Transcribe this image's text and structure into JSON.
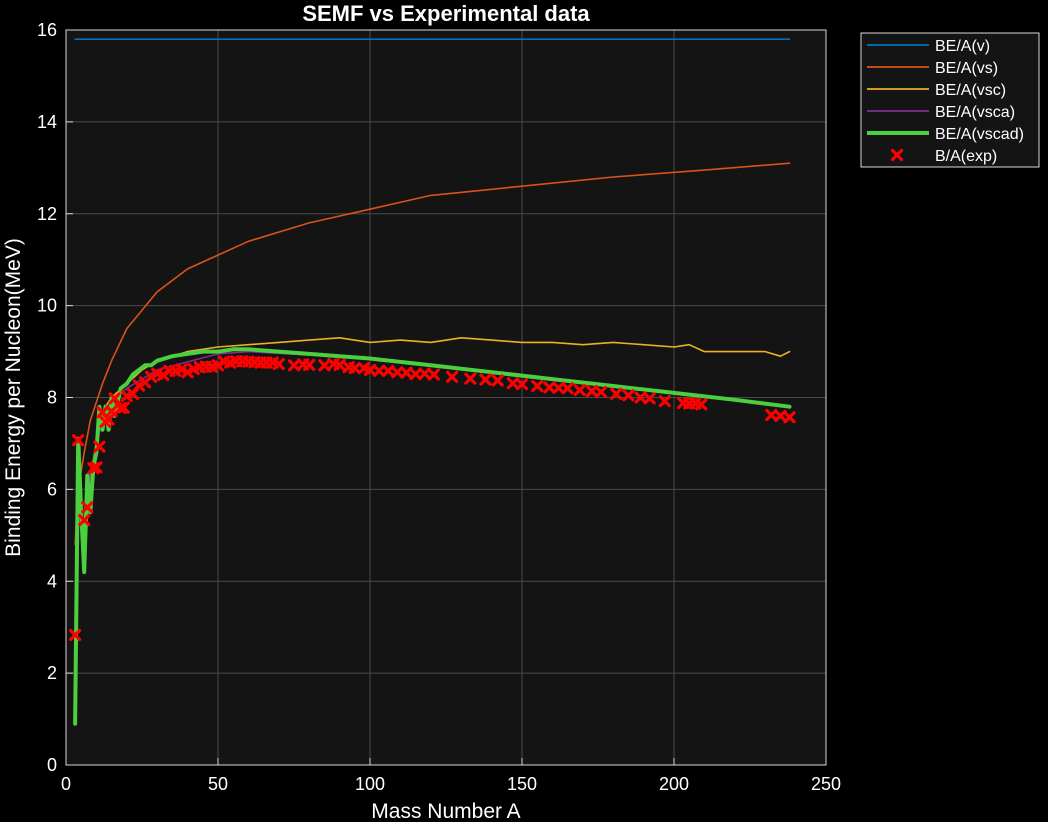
{
  "chart_data": {
    "type": "line",
    "title": "SEMF vs Experimental data",
    "xlabel": "Mass Number A",
    "ylabel": "Binding Energy per Nucleon(MeV)",
    "xlim": [
      0,
      250
    ],
    "ylim": [
      0,
      16
    ],
    "xticks": [
      0,
      50,
      100,
      150,
      200,
      250
    ],
    "yticks": [
      0,
      2,
      4,
      6,
      8,
      10,
      12,
      14,
      16
    ],
    "grid": true,
    "legend_position": "outside top-right",
    "background": "#141414",
    "series": [
      {
        "name": "BE/A(v)",
        "color": "#0072BD",
        "style": "line",
        "x": [
          3,
          238
        ],
        "y": [
          15.8,
          15.8
        ]
      },
      {
        "name": "BE/A(vs)",
        "color": "#D95319",
        "style": "line",
        "x": [
          3,
          4,
          6,
          8,
          10,
          12,
          15,
          20,
          25,
          30,
          40,
          50,
          60,
          80,
          100,
          120,
          150,
          180,
          210,
          238
        ],
        "y": [
          4.8,
          6.0,
          6.8,
          7.5,
          7.9,
          8.3,
          8.8,
          9.5,
          9.9,
          10.3,
          10.8,
          11.1,
          11.4,
          11.8,
          12.1,
          12.4,
          12.6,
          12.8,
          12.95,
          13.1
        ]
      },
      {
        "name": "BE/A(vsc)",
        "color": "#EDB120",
        "style": "line",
        "x": [
          3,
          4,
          6,
          8,
          10,
          12,
          15,
          20,
          25,
          30,
          35,
          40,
          50,
          60,
          70,
          80,
          90,
          100,
          110,
          120,
          130,
          140,
          150,
          160,
          170,
          180,
          190,
          200,
          205,
          210,
          220,
          230,
          235,
          238
        ],
        "y": [
          1.0,
          7.0,
          4.5,
          6.3,
          7.0,
          7.7,
          8.0,
          8.3,
          8.6,
          8.8,
          8.9,
          9.0,
          9.1,
          9.15,
          9.2,
          9.25,
          9.3,
          9.2,
          9.25,
          9.2,
          9.3,
          9.25,
          9.2,
          9.2,
          9.15,
          9.2,
          9.15,
          9.1,
          9.15,
          9.0,
          9.0,
          9.0,
          8.9,
          9.0
        ]
      },
      {
        "name": "BE/A(vsca)",
        "color": "#7E2F8E",
        "style": "line",
        "x": [
          3,
          4,
          6,
          8,
          10,
          12,
          15,
          20,
          30,
          50,
          60,
          100,
          150,
          200,
          238
        ],
        "y": [
          0.9,
          7.0,
          4.2,
          6.4,
          6.9,
          7.6,
          7.9,
          8.2,
          8.6,
          8.95,
          9.0,
          8.85,
          8.5,
          8.1,
          7.8
        ]
      },
      {
        "name": "BE/A(vscad)",
        "color": "#4ACF3F",
        "style": "thick-line",
        "x": [
          3,
          4,
          5,
          6,
          7,
          8,
          9,
          10,
          11,
          12,
          13,
          14,
          15,
          16,
          18,
          20,
          22,
          24,
          26,
          28,
          30,
          35,
          40,
          45,
          50,
          55,
          60,
          70,
          80,
          90,
          100,
          120,
          140,
          160,
          180,
          200,
          220,
          238
        ],
        "y": [
          0.9,
          7.1,
          5.5,
          4.2,
          6.3,
          5.5,
          6.5,
          6.8,
          7.8,
          7.3,
          7.8,
          7.3,
          8.0,
          7.6,
          8.2,
          8.3,
          8.5,
          8.6,
          8.7,
          8.7,
          8.8,
          8.9,
          8.95,
          9.0,
          9.0,
          9.05,
          9.05,
          9.0,
          8.95,
          8.9,
          8.85,
          8.7,
          8.55,
          8.4,
          8.25,
          8.1,
          7.95,
          7.8
        ]
      },
      {
        "name": "B/A(exp)",
        "color": "#FF0000",
        "style": "x-markers",
        "x": [
          3,
          4,
          6,
          7,
          9,
          10,
          11,
          12,
          13,
          14,
          15,
          16,
          18,
          19,
          20,
          22,
          24,
          26,
          28,
          30,
          32,
          34,
          36,
          38,
          40,
          42,
          44,
          46,
          48,
          50,
          52,
          54,
          56,
          58,
          60,
          62,
          64,
          66,
          68,
          70,
          75,
          78,
          80,
          85,
          88,
          90,
          93,
          95,
          98,
          100,
          103,
          106,
          109,
          112,
          115,
          118,
          121,
          127,
          133,
          138,
          142,
          147,
          150,
          155,
          159,
          162,
          165,
          169,
          173,
          176,
          181,
          185,
          189,
          192,
          197,
          203,
          205,
          207,
          209,
          232,
          235,
          238
        ],
        "y": [
          2.83,
          7.07,
          5.33,
          5.61,
          6.46,
          6.48,
          6.93,
          7.68,
          7.47,
          7.52,
          7.7,
          7.98,
          7.77,
          7.78,
          8.03,
          8.08,
          8.26,
          8.33,
          8.45,
          8.52,
          8.49,
          8.58,
          8.58,
          8.61,
          8.55,
          8.62,
          8.66,
          8.67,
          8.67,
          8.7,
          8.78,
          8.76,
          8.79,
          8.79,
          8.78,
          8.77,
          8.76,
          8.76,
          8.76,
          8.73,
          8.7,
          8.72,
          8.71,
          8.7,
          8.73,
          8.71,
          8.66,
          8.64,
          8.64,
          8.6,
          8.58,
          8.58,
          8.55,
          8.54,
          8.51,
          8.52,
          8.5,
          8.45,
          8.41,
          8.39,
          8.37,
          8.31,
          8.29,
          8.25,
          8.22,
          8.21,
          8.2,
          8.16,
          8.14,
          8.12,
          8.08,
          8.05,
          8.0,
          7.98,
          7.92,
          7.88,
          7.87,
          7.87,
          7.85,
          7.62,
          7.6,
          7.57
        ]
      }
    ]
  }
}
